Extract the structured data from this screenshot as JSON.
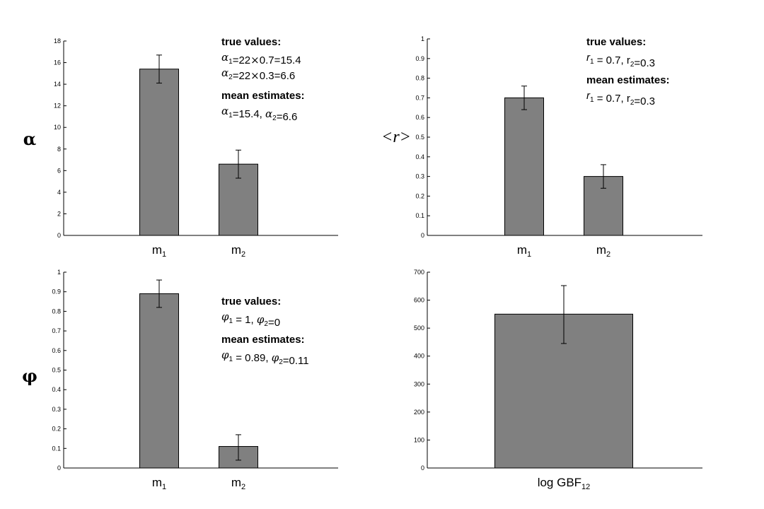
{
  "colors": {
    "bar_fill": "#808080",
    "stroke": "#000000",
    "background": "#ffffff"
  },
  "chart_data": [
    {
      "id": "alpha",
      "type": "bar",
      "ylabel": "α",
      "ylim": [
        0,
        18
      ],
      "yticks": [
        0,
        2,
        4,
        6,
        8,
        10,
        12,
        14,
        16,
        18
      ],
      "grid": false,
      "categories": [
        {
          "main": "m",
          "sub": "1"
        },
        {
          "main": "m",
          "sub": "2"
        }
      ],
      "values": [
        15.4,
        6.6
      ],
      "error_low": [
        14.1,
        5.3
      ],
      "error_high": [
        16.7,
        7.9
      ],
      "annotation": [
        {
          "bold": true,
          "runs": [
            {
              "t": "true values:"
            }
          ]
        },
        {
          "runs": [
            {
              "t": "α",
              "g": true
            },
            {
              "t": "1",
              "sub": true
            },
            {
              "t": "=22"
            },
            {
              "t": "×",
              "g": true
            },
            {
              "t": "0.7=15.4"
            }
          ]
        },
        {
          "runs": [
            {
              "t": "α",
              "g": true
            },
            {
              "t": "2",
              "sub": true
            },
            {
              "t": "=22"
            },
            {
              "t": "×",
              "g": true
            },
            {
              "t": "0.3=6.6"
            }
          ]
        },
        {
          "gap": true,
          "bold": true,
          "runs": [
            {
              "t": "mean estimates:"
            }
          ]
        },
        {
          "runs": [
            {
              "t": "α",
              "g": true
            },
            {
              "t": "1",
              "sub": true
            },
            {
              "t": "=15.4, "
            },
            {
              "t": "α",
              "g": true
            },
            {
              "t": "2",
              "sub": true
            },
            {
              "t": "=6.6"
            }
          ]
        }
      ]
    },
    {
      "id": "r",
      "type": "bar",
      "ylabel": "<r>",
      "ylim": [
        0,
        1
      ],
      "yticks": [
        0,
        0.1,
        0.2,
        0.3,
        0.4,
        0.5,
        0.6,
        0.7,
        0.8,
        0.9,
        1
      ],
      "grid": false,
      "categories": [
        {
          "main": "m",
          "sub": "1"
        },
        {
          "main": "m",
          "sub": "2"
        }
      ],
      "values": [
        0.7,
        0.3
      ],
      "error_low": [
        0.64,
        0.24
      ],
      "error_high": [
        0.76,
        0.36
      ],
      "annotation": [
        {
          "bold": true,
          "runs": [
            {
              "t": "true values:"
            }
          ]
        },
        {
          "runs": [
            {
              "t": "r",
              "i": true
            },
            {
              "t": "1",
              "sub": true
            },
            {
              "t": " = 0.7, r"
            },
            {
              "t": "2",
              "sub": true
            },
            {
              "t": "=0.3"
            }
          ]
        },
        {
          "gap": true,
          "bold": true,
          "runs": [
            {
              "t": "mean estimates:"
            }
          ]
        },
        {
          "runs": [
            {
              "t": "r",
              "i": true
            },
            {
              "t": "1",
              "sub": true
            },
            {
              "t": " = 0.7, r"
            },
            {
              "t": "2",
              "sub": true
            },
            {
              "t": "=0.3"
            }
          ]
        }
      ]
    },
    {
      "id": "phi",
      "type": "bar",
      "ylabel": "φ",
      "ylim": [
        0,
        1
      ],
      "yticks": [
        0,
        0.1,
        0.2,
        0.3,
        0.4,
        0.5,
        0.6,
        0.7,
        0.8,
        0.9,
        1
      ],
      "grid": false,
      "categories": [
        {
          "main": "m",
          "sub": "1"
        },
        {
          "main": "m",
          "sub": "2"
        }
      ],
      "values": [
        0.89,
        0.11
      ],
      "error_low": [
        0.82,
        0.04
      ],
      "error_high": [
        0.96,
        0.17
      ],
      "annotation": [
        {
          "bold": true,
          "runs": [
            {
              "t": "true values:"
            }
          ]
        },
        {
          "runs": [
            {
              "t": "φ",
              "g": true
            },
            {
              "t": "1",
              "sub": true
            },
            {
              "t": " = 1, "
            },
            {
              "t": "φ",
              "g": true
            },
            {
              "t": "2",
              "sub": true
            },
            {
              "t": "=0"
            }
          ]
        },
        {
          "gap": true,
          "bold": true,
          "runs": [
            {
              "t": "mean estimates:"
            }
          ]
        },
        {
          "runs": [
            {
              "t": "φ",
              "g": true
            },
            {
              "t": "1",
              "sub": true
            },
            {
              "t": " = 0.89, "
            },
            {
              "t": "φ",
              "g": true
            },
            {
              "t": "2",
              "sub": true
            },
            {
              "t": "=0.11"
            }
          ]
        }
      ]
    },
    {
      "id": "gbf",
      "type": "bar",
      "ylabel": "",
      "ylim": [
        0,
        700
      ],
      "yticks": [
        0,
        100,
        200,
        300,
        400,
        500,
        600,
        700
      ],
      "grid": false,
      "categories": [
        {
          "main": "log GBF",
          "sub": "12"
        }
      ],
      "values": [
        550
      ],
      "error_low": [
        445
      ],
      "error_high": [
        652
      ],
      "annotation": []
    }
  ]
}
